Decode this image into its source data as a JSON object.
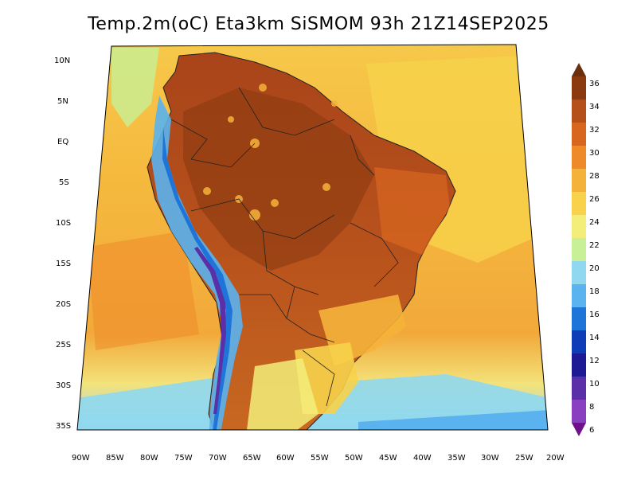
{
  "title": "Temp.2m(oC) Eta3km SiSMOM 93h 21Z14SEP2025",
  "lat_labels": [
    "10N",
    "5N",
    "EQ",
    "5S",
    "10S",
    "15S",
    "20S",
    "25S",
    "30S",
    "35S"
  ],
  "lon_labels": [
    "90W",
    "85W",
    "80W",
    "75W",
    "70W",
    "65W",
    "60W",
    "55W",
    "50W",
    "45W",
    "40W",
    "35W",
    "30W",
    "25W",
    "20W"
  ],
  "colorbar": {
    "labels": [
      "36",
      "34",
      "32",
      "30",
      "28",
      "26",
      "24",
      "22",
      "20",
      "18",
      "16",
      "14",
      "12",
      "10",
      "8",
      "6"
    ],
    "colors": [
      "#6b2f0f",
      "#8b3a10",
      "#b5501a",
      "#d8661f",
      "#ef8a2a",
      "#f5b23a",
      "#f7d24a",
      "#f3ee7a",
      "#c8f096",
      "#8fd8f0",
      "#5ab3ee",
      "#1e74d8",
      "#0f3db8",
      "#1e1a96",
      "#5a2fa8",
      "#8a3fc0",
      "#70108a"
    ]
  }
}
